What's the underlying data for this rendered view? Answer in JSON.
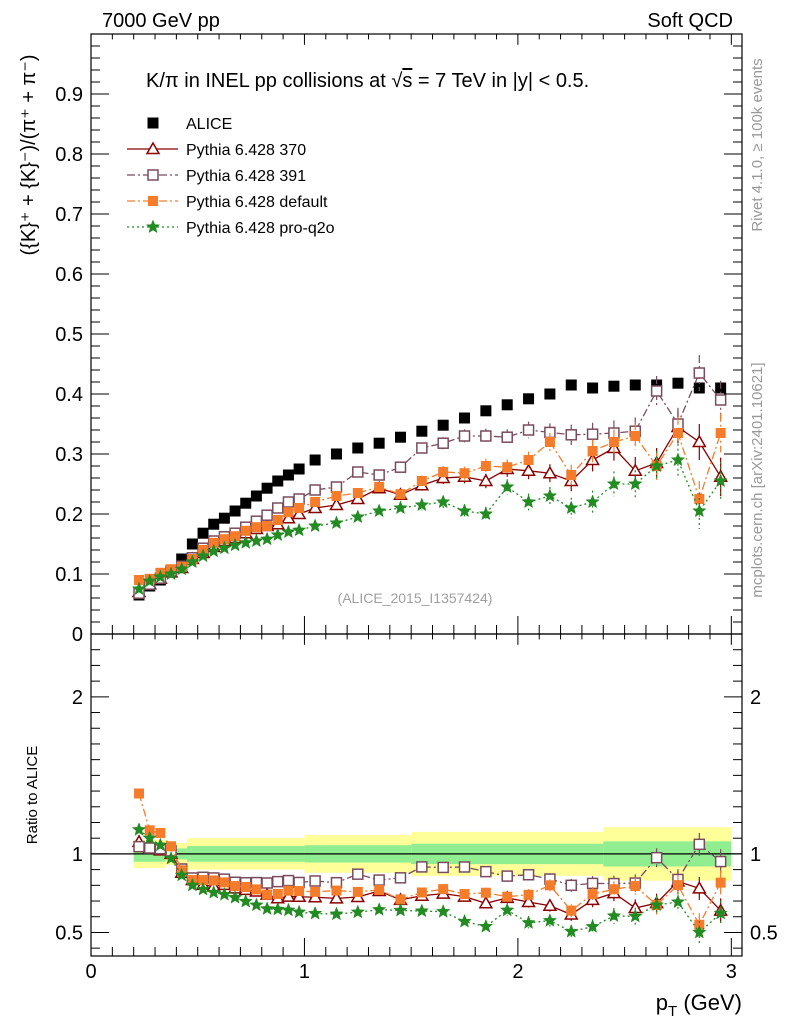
{
  "header": {
    "left": "7000 GeV pp",
    "right": "Soft QCD"
  },
  "side": {
    "rivet": "Rivet 4.1.0, ≥ 100k events",
    "mcplots": "mcplots.cern.ch [arXiv:2401.10621]"
  },
  "chart_data": {
    "type": "scatter",
    "title": "K/π in INEL pp collisions at √s = 7 TeV in |y| < 0.5.",
    "title_parts": {
      "pre": "K/π in INEL pp collisions at ",
      "sqrt": "√",
      "s": "s",
      "post": " =  7 TeV in |y| < 0.5."
    },
    "ylabel": "({K}⁺ + {K}⁻)/(π⁺ + π⁻)",
    "xlabel": "p_T (GeV)",
    "xlabel_main": "p",
    "xlabel_sub": "T",
    "xlabel_unit": " (GeV)",
    "ratio_ylabel": "Ratio to ALICE",
    "watermark": "(ALICE_2015_I1357424)",
    "xlim": [
      0,
      3.05
    ],
    "ylim": [
      0,
      1.0
    ],
    "ratio_ylim": [
      0.35,
      2.4
    ],
    "x_ticks": [
      0,
      1,
      2,
      3
    ],
    "x_tick_labels": [
      "0",
      "1",
      "2",
      "3"
    ],
    "y_ticks": [
      0,
      0.1,
      0.2,
      0.3,
      0.4,
      0.5,
      0.6,
      0.7,
      0.8,
      0.9
    ],
    "y_tick_labels": [
      "0",
      "0.1",
      "0.2",
      "0.3",
      "0.4",
      "0.5",
      "0.6",
      "0.7",
      "0.8",
      "0.9"
    ],
    "ratio_ticks": [
      0.5,
      1,
      2
    ],
    "ratio_tick_labels": [
      "0.5",
      "1",
      "2"
    ],
    "x": [
      0.225,
      0.275,
      0.325,
      0.375,
      0.425,
      0.475,
      0.525,
      0.575,
      0.625,
      0.675,
      0.725,
      0.775,
      0.825,
      0.875,
      0.925,
      0.975,
      1.05,
      1.15,
      1.25,
      1.35,
      1.45,
      1.55,
      1.65,
      1.75,
      1.85,
      1.95,
      2.05,
      2.15,
      2.25,
      2.35,
      2.45,
      2.55,
      2.65,
      2.75,
      2.85,
      2.95
    ],
    "series": [
      {
        "name": "ALICE",
        "color": "#000000",
        "marker": "square-filled",
        "line": "none",
        "values": [
          0.065,
          0.08,
          0.09,
          0.103,
          0.125,
          0.15,
          0.168,
          0.183,
          0.193,
          0.205,
          0.218,
          0.23,
          0.243,
          0.255,
          0.265,
          0.275,
          0.29,
          0.3,
          0.31,
          0.318,
          0.328,
          0.338,
          0.348,
          0.36,
          0.372,
          0.382,
          0.392,
          0.4,
          0.415,
          0.41,
          0.413,
          0.415,
          0.415,
          0.418,
          0.41,
          0.41
        ],
        "errors": [
          0.002,
          0.002,
          0.002,
          0.002,
          0.002,
          0.002,
          0.002,
          0.002,
          0.002,
          0.002,
          0.002,
          0.002,
          0.002,
          0.002,
          0.002,
          0.002,
          0.002,
          0.002,
          0.002,
          0.002,
          0.002,
          0.002,
          0.002,
          0.002,
          0.002,
          0.002,
          0.003,
          0.003,
          0.003,
          0.003,
          0.003,
          0.003,
          0.004,
          0.004,
          0.004,
          0.004
        ]
      },
      {
        "name": "Pythia 6.428 370",
        "color": "#8b0000",
        "marker": "triangle-open",
        "line": "solid",
        "values": [
          0.07,
          0.083,
          0.092,
          0.103,
          0.11,
          0.125,
          0.135,
          0.145,
          0.155,
          0.16,
          0.168,
          0.175,
          0.18,
          0.183,
          0.193,
          0.2,
          0.21,
          0.215,
          0.225,
          0.243,
          0.232,
          0.248,
          0.26,
          0.262,
          0.255,
          0.275,
          0.272,
          0.268,
          0.255,
          0.29,
          0.31,
          0.272,
          0.285,
          0.345,
          0.32,
          0.262
        ],
        "errors": [
          0.002,
          0.002,
          0.002,
          0.002,
          0.003,
          0.003,
          0.003,
          0.003,
          0.004,
          0.004,
          0.004,
          0.004,
          0.005,
          0.005,
          0.005,
          0.005,
          0.006,
          0.006,
          0.007,
          0.008,
          0.008,
          0.009,
          0.01,
          0.011,
          0.012,
          0.013,
          0.014,
          0.015,
          0.017,
          0.019,
          0.021,
          0.023,
          0.025,
          0.027,
          0.03,
          0.032
        ]
      },
      {
        "name": "Pythia 6.428 391",
        "color": "#7a4b5e",
        "marker": "square-open",
        "line": "dashdot",
        "values": [
          0.068,
          0.083,
          0.093,
          0.105,
          0.113,
          0.127,
          0.143,
          0.155,
          0.162,
          0.168,
          0.178,
          0.188,
          0.198,
          0.21,
          0.22,
          0.225,
          0.24,
          0.245,
          0.27,
          0.265,
          0.278,
          0.31,
          0.318,
          0.33,
          0.33,
          0.328,
          0.34,
          0.336,
          0.332,
          0.333,
          0.335,
          0.338,
          0.405,
          0.35,
          0.435,
          0.39
        ],
        "errors": [
          0.002,
          0.002,
          0.002,
          0.002,
          0.003,
          0.003,
          0.003,
          0.003,
          0.004,
          0.004,
          0.004,
          0.004,
          0.005,
          0.005,
          0.005,
          0.005,
          0.006,
          0.006,
          0.007,
          0.008,
          0.008,
          0.009,
          0.01,
          0.011,
          0.012,
          0.013,
          0.014,
          0.015,
          0.017,
          0.019,
          0.021,
          0.023,
          0.025,
          0.027,
          0.03,
          0.032
        ]
      },
      {
        "name": "Pythia 6.428 default",
        "color": "#f47c2b",
        "marker": "square-filled",
        "line": "dashdot",
        "values": [
          0.09,
          0.092,
          0.102,
          0.108,
          0.112,
          0.125,
          0.14,
          0.152,
          0.158,
          0.163,
          0.172,
          0.178,
          0.18,
          0.19,
          0.203,
          0.21,
          0.22,
          0.23,
          0.235,
          0.245,
          0.233,
          0.255,
          0.27,
          0.268,
          0.28,
          0.278,
          0.29,
          0.32,
          0.265,
          0.305,
          0.32,
          0.33,
          0.28,
          0.335,
          0.225,
          0.335
        ],
        "errors": [
          0.002,
          0.002,
          0.002,
          0.002,
          0.003,
          0.003,
          0.003,
          0.003,
          0.004,
          0.004,
          0.004,
          0.004,
          0.005,
          0.005,
          0.005,
          0.005,
          0.006,
          0.006,
          0.007,
          0.008,
          0.008,
          0.009,
          0.01,
          0.011,
          0.012,
          0.013,
          0.014,
          0.015,
          0.017,
          0.019,
          0.021,
          0.023,
          0.025,
          0.027,
          0.03,
          0.032
        ]
      },
      {
        "name": "Pythia 6.428 pro-q2o",
        "color": "#228b22",
        "marker": "star",
        "line": "dotted",
        "values": [
          0.075,
          0.088,
          0.095,
          0.1,
          0.108,
          0.12,
          0.13,
          0.138,
          0.143,
          0.148,
          0.152,
          0.155,
          0.158,
          0.165,
          0.17,
          0.173,
          0.18,
          0.185,
          0.195,
          0.205,
          0.21,
          0.215,
          0.22,
          0.205,
          0.2,
          0.245,
          0.22,
          0.23,
          0.21,
          0.22,
          0.25,
          0.25,
          0.28,
          0.29,
          0.205,
          0.255
        ],
        "errors": [
          0.002,
          0.002,
          0.002,
          0.002,
          0.003,
          0.003,
          0.003,
          0.003,
          0.004,
          0.004,
          0.004,
          0.004,
          0.005,
          0.005,
          0.005,
          0.005,
          0.006,
          0.006,
          0.007,
          0.008,
          0.008,
          0.009,
          0.01,
          0.011,
          0.012,
          0.013,
          0.014,
          0.015,
          0.017,
          0.019,
          0.021,
          0.023,
          0.025,
          0.027,
          0.03,
          0.032
        ]
      }
    ],
    "ratio_band_inner": {
      "color": "#90ee90",
      "x_edges": [
        0.2,
        0.35,
        0.45,
        1.0,
        1.5,
        2.4,
        3.0
      ],
      "half_widths": [
        0.05,
        0.035,
        0.05,
        0.055,
        0.065,
        0.08
      ]
    },
    "ratio_band_outer": {
      "color": "#ffff99",
      "x_edges": [
        0.2,
        0.35,
        0.45,
        1.0,
        1.5,
        2.4,
        3.0
      ],
      "half_widths": [
        0.09,
        0.07,
        0.1,
        0.12,
        0.14,
        0.17
      ]
    },
    "legend_position": "top-left"
  }
}
